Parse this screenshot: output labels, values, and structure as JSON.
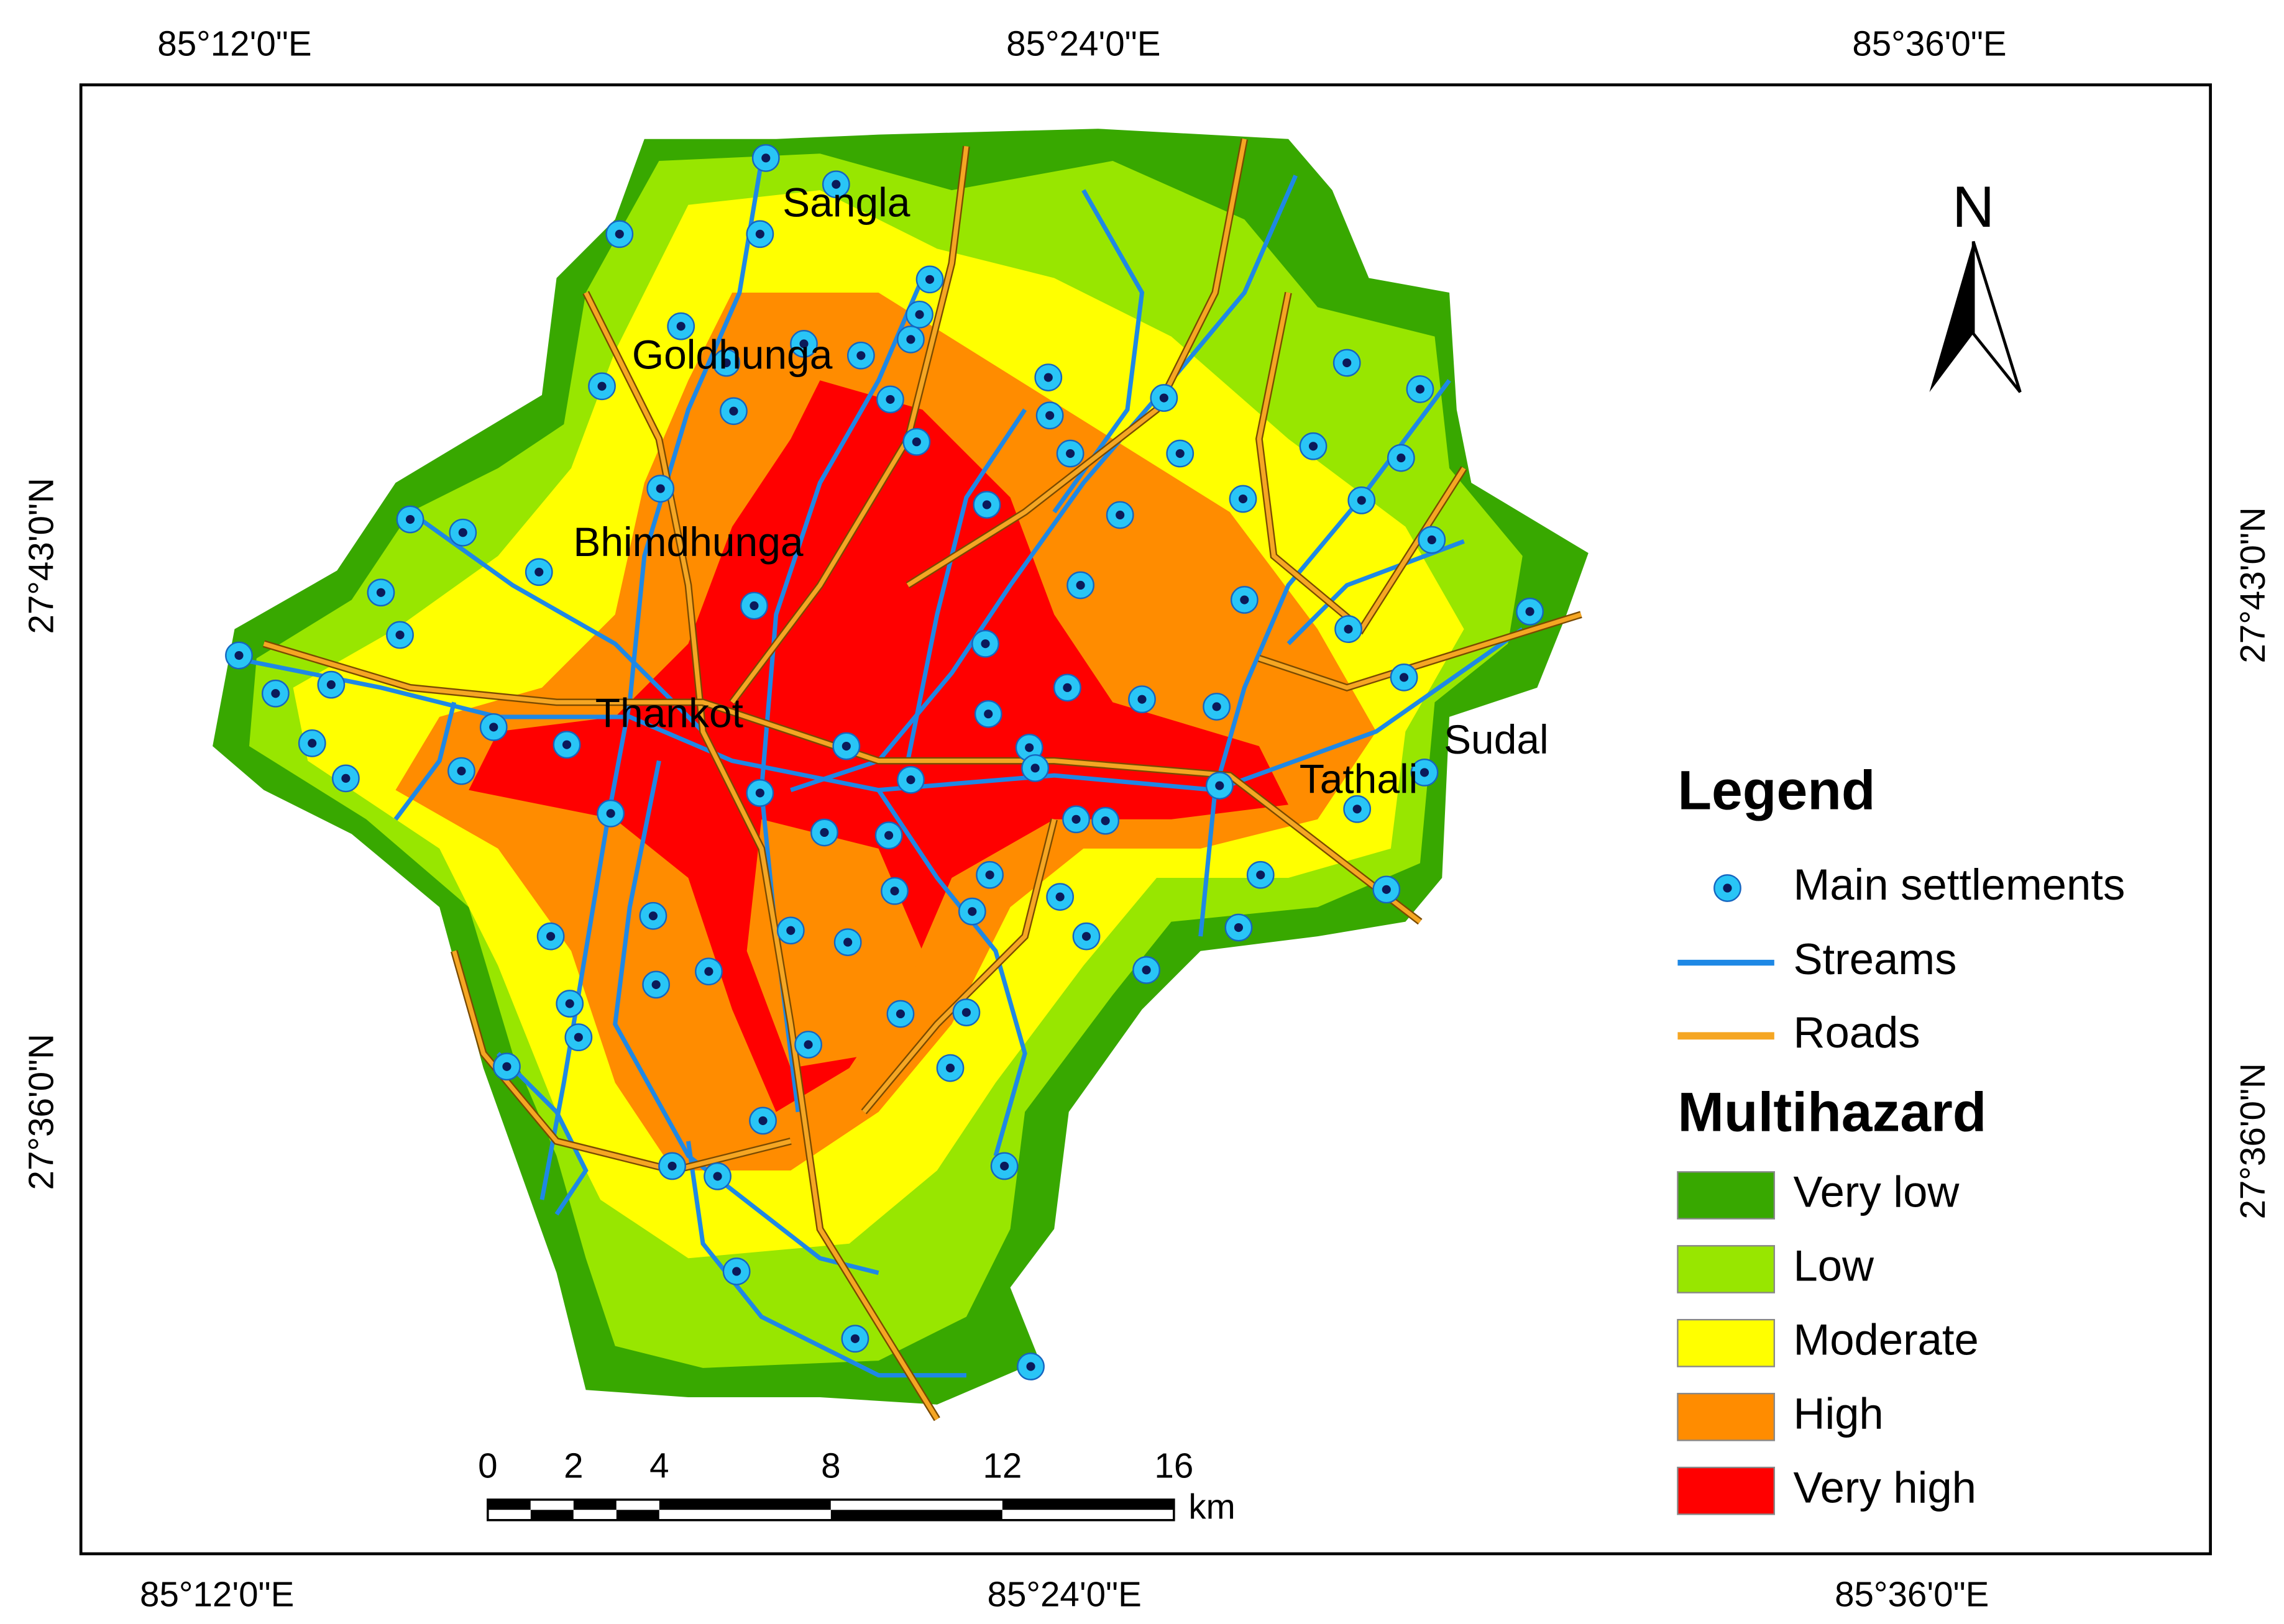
{
  "coordinates": {
    "top": [
      "85°12'0\"E",
      "85°24'0\"E",
      "85°36'0\"E"
    ],
    "bottom": [
      "85°12'0\"E",
      "85°24'0\"E",
      "85°36'0\"E"
    ],
    "left": [
      "27°43'0\"N",
      "27°36'0\"N"
    ],
    "right": [
      "27°43'0\"N",
      "27°36'0\"N"
    ]
  },
  "places": [
    "Sangla",
    "Goldhunga",
    "Bhimdhunga",
    "Thankot",
    "Tathali",
    "Sudal"
  ],
  "north_arrow": "N",
  "legend": {
    "title": "Legend",
    "items": [
      "Main settlements",
      "Streams",
      "Roads"
    ],
    "multihazard_title": "Multihazard",
    "classes": [
      {
        "name": "Very low",
        "color": "#38a800"
      },
      {
        "name": "Low",
        "color": "#98e600"
      },
      {
        "name": "Moderate",
        "color": "#ffff00"
      },
      {
        "name": "High",
        "color": "#ff8c00"
      },
      {
        "name": "Very high",
        "color": "#ff0000"
      }
    ]
  },
  "scale_bar": {
    "ticks": [
      0,
      2,
      4,
      8,
      12,
      16
    ],
    "unit": "km"
  }
}
